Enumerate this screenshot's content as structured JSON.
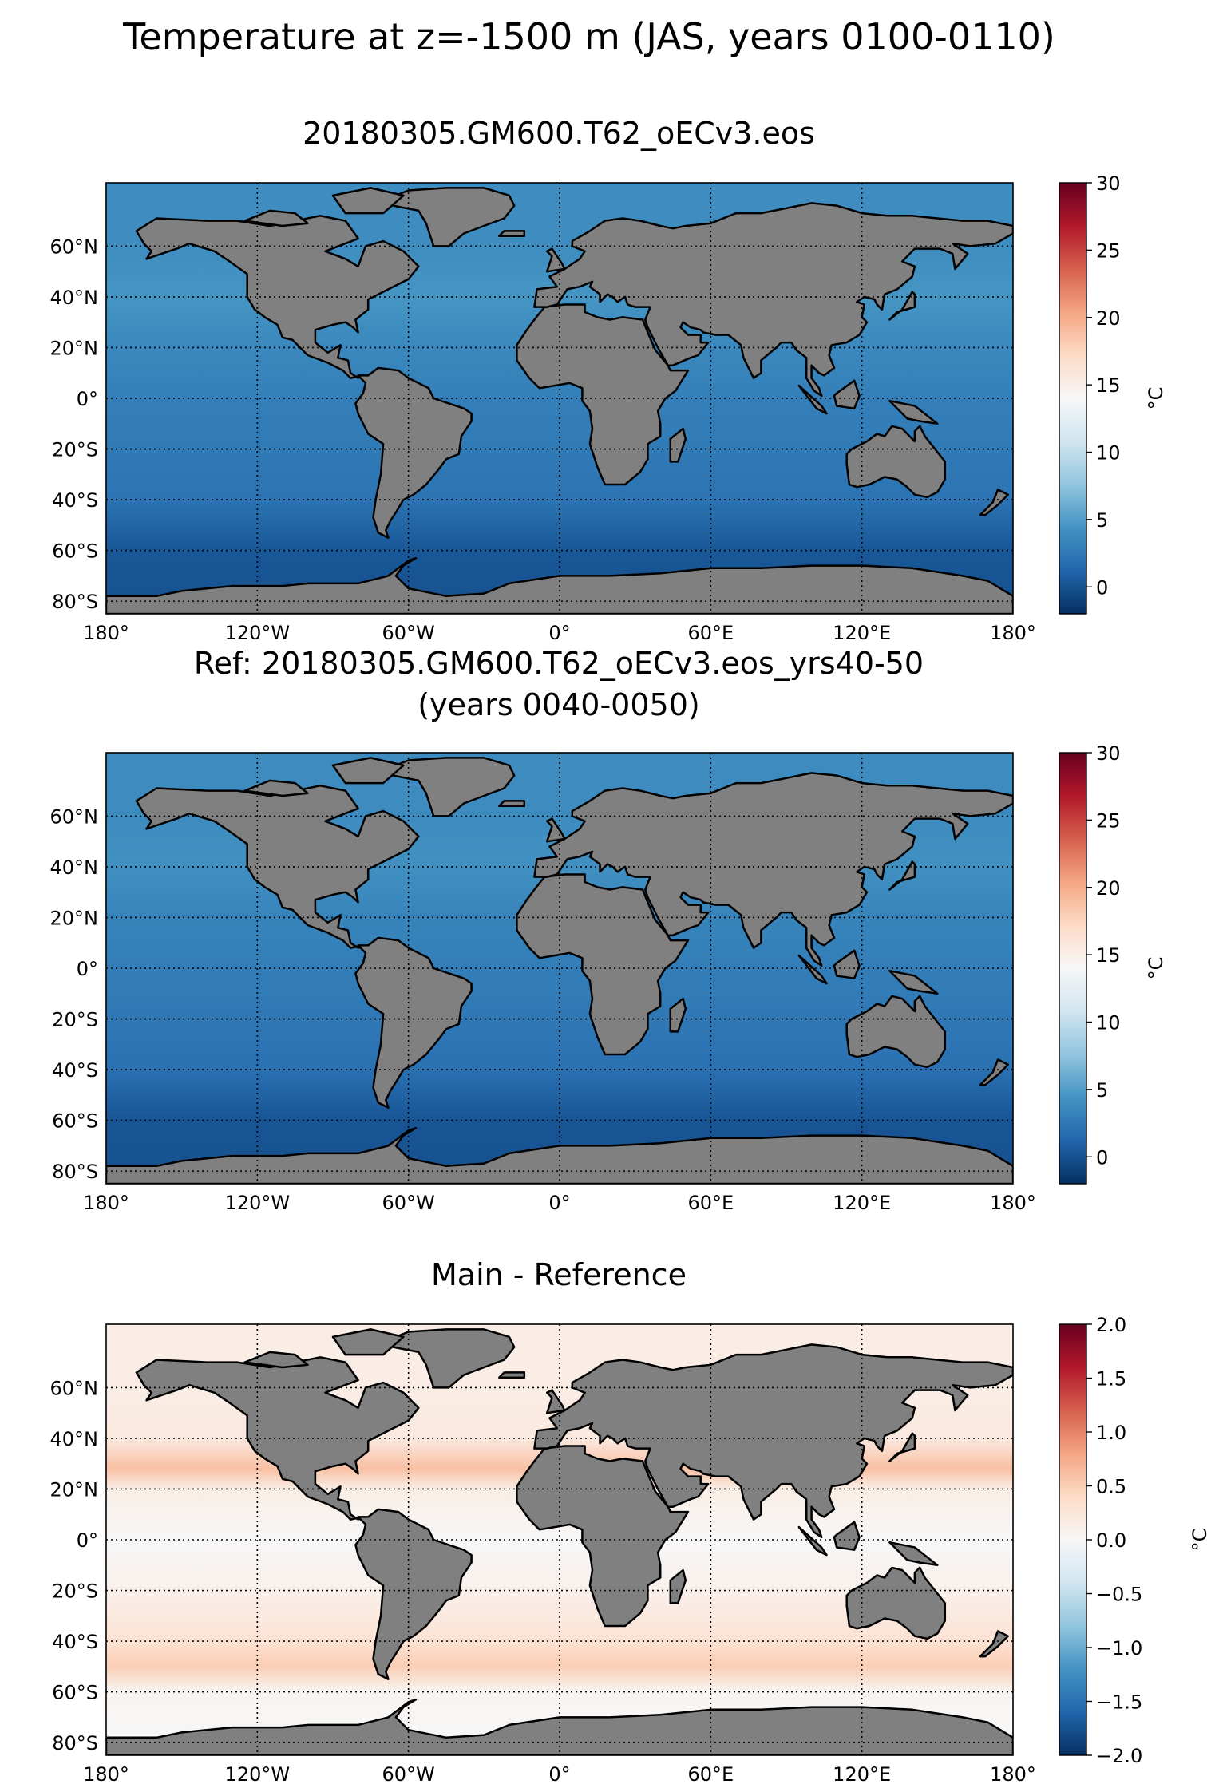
{
  "figure": {
    "title": "Temperature at z=-1500 m (JAS, years 0100-0110)"
  },
  "chart_data": [
    {
      "type": "heatmap",
      "title": "20180305.GM600.T62_oECv3.eos",
      "subtitle": "",
      "field": "ocean temperature",
      "xlim": [
        -180,
        180
      ],
      "ylim": [
        -85,
        85
      ],
      "x_ticks": [
        -180,
        -120,
        -60,
        0,
        60,
        120,
        180
      ],
      "x_tick_labels": [
        "180°",
        "120°W",
        "60°W",
        "0°",
        "60°E",
        "120°E",
        "180°"
      ],
      "y_ticks": [
        -80,
        -60,
        -40,
        -20,
        0,
        20,
        40,
        60
      ],
      "y_tick_labels": [
        "80°S",
        "60°S",
        "40°S",
        "20°S",
        "0°",
        "20°N",
        "40°N",
        "60°N"
      ],
      "grid": true,
      "colorbar": {
        "label": "°C",
        "range": [
          -2,
          30
        ],
        "ticks": [
          0,
          5,
          10,
          15,
          20,
          25,
          30
        ],
        "tick_labels": [
          "0",
          "5",
          "10",
          "15",
          "20",
          "25",
          "30"
        ],
        "colormap": "RdBu_r"
      },
      "land_color": "#808080",
      "estimated_zonal_mean": [
        {
          "lat": -80,
          "value": 0.0
        },
        {
          "lat": -60,
          "value": 0.3
        },
        {
          "lat": -40,
          "value": 2.2
        },
        {
          "lat": -20,
          "value": 2.6
        },
        {
          "lat": 0,
          "value": 3.0
        },
        {
          "lat": 20,
          "value": 3.6
        },
        {
          "lat": 40,
          "value": 4.5
        },
        {
          "lat": 60,
          "value": 4.0
        }
      ]
    },
    {
      "type": "heatmap",
      "title": "Ref: 20180305.GM600.T62_oECv3.eos_yrs40-50",
      "subtitle": "(years 0040-0050)",
      "field": "ocean temperature",
      "xlim": [
        -180,
        180
      ],
      "ylim": [
        -85,
        85
      ],
      "x_ticks": [
        -180,
        -120,
        -60,
        0,
        60,
        120,
        180
      ],
      "x_tick_labels": [
        "180°",
        "120°W",
        "60°W",
        "0°",
        "60°E",
        "120°E",
        "180°"
      ],
      "y_ticks": [
        -80,
        -60,
        -40,
        -20,
        0,
        20,
        40,
        60
      ],
      "y_tick_labels": [
        "80°S",
        "60°S",
        "40°S",
        "20°S",
        "0°",
        "20°N",
        "40°N",
        "60°N"
      ],
      "grid": true,
      "colorbar": {
        "label": "°C",
        "range": [
          -2,
          30
        ],
        "ticks": [
          0,
          5,
          10,
          15,
          20,
          25,
          30
        ],
        "tick_labels": [
          "0",
          "5",
          "10",
          "15",
          "20",
          "25",
          "30"
        ],
        "colormap": "RdBu_r"
      },
      "land_color": "#808080",
      "estimated_zonal_mean": [
        {
          "lat": -80,
          "value": 0.0
        },
        {
          "lat": -60,
          "value": 0.2
        },
        {
          "lat": -40,
          "value": 2.0
        },
        {
          "lat": -20,
          "value": 2.5
        },
        {
          "lat": 0,
          "value": 2.9
        },
        {
          "lat": 20,
          "value": 3.3
        },
        {
          "lat": 40,
          "value": 4.2
        },
        {
          "lat": 60,
          "value": 3.9
        }
      ]
    },
    {
      "type": "heatmap",
      "title": "Main - Reference",
      "subtitle": "",
      "field": "temperature difference",
      "xlim": [
        -180,
        180
      ],
      "ylim": [
        -85,
        85
      ],
      "x_ticks": [
        -180,
        -120,
        -60,
        0,
        60,
        120,
        180
      ],
      "x_tick_labels": [
        "180°",
        "120°W",
        "60°W",
        "0°",
        "60°E",
        "120°E",
        "180°"
      ],
      "y_ticks": [
        -80,
        -60,
        -40,
        -20,
        0,
        20,
        40,
        60
      ],
      "y_tick_labels": [
        "80°S",
        "60°S",
        "40°S",
        "20°S",
        "0°",
        "20°N",
        "40°N",
        "60°N"
      ],
      "grid": true,
      "colorbar": {
        "label": "°C",
        "range": [
          -2,
          2
        ],
        "ticks": [
          -2.0,
          -1.5,
          -1.0,
          -0.5,
          0.0,
          0.5,
          1.0,
          1.5,
          2.0
        ],
        "tick_labels": [
          "−2.0",
          "−1.5",
          "−1.0",
          "−0.5",
          "0.0",
          "0.5",
          "1.0",
          "1.5",
          "2.0"
        ],
        "colormap": "RdBu_r"
      },
      "land_color": "#808080",
      "estimated_zonal_mean": [
        {
          "lat": -80,
          "value": 0.0
        },
        {
          "lat": -60,
          "value": 0.05
        },
        {
          "lat": -50,
          "value": 0.5
        },
        {
          "lat": -40,
          "value": 0.3
        },
        {
          "lat": -20,
          "value": 0.1
        },
        {
          "lat": 0,
          "value": 0.0
        },
        {
          "lat": 20,
          "value": 0.15
        },
        {
          "lat": 28,
          "value": 0.6
        },
        {
          "lat": 40,
          "value": 0.2
        },
        {
          "lat": 60,
          "value": 0.15
        }
      ]
    }
  ]
}
